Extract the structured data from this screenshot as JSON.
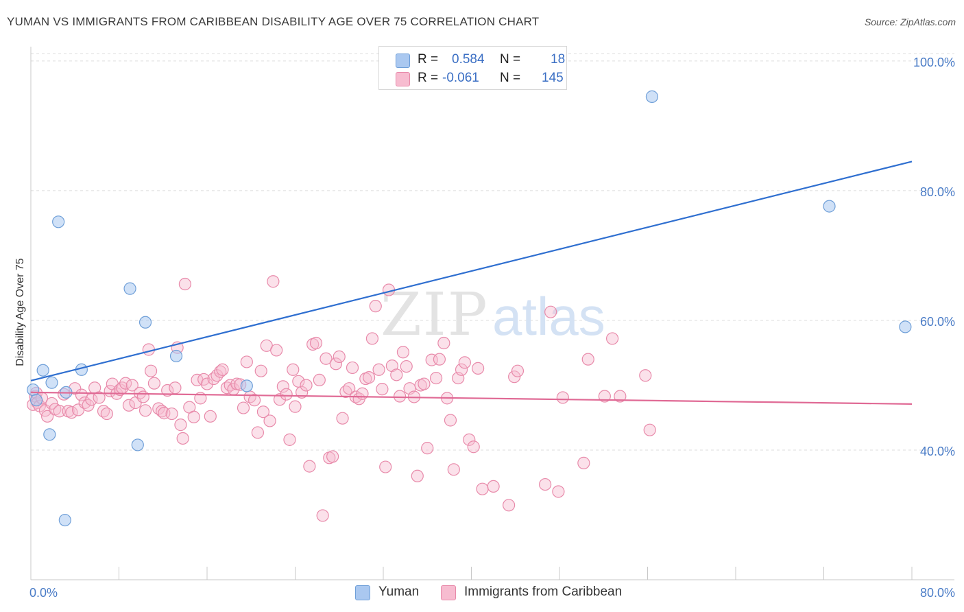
{
  "title": "YUMAN VS IMMIGRANTS FROM CARIBBEAN DISABILITY AGE OVER 75 CORRELATION CHART",
  "source": "Source: ZipAtlas.com",
  "watermark": {
    "zip": "ZIP",
    "atlas": "atlas"
  },
  "legend_box": {
    "rows": [
      {
        "r_label": "R =",
        "r_value": "0.584",
        "n_label": "N =",
        "n_value": "18",
        "color": "#aac8f0",
        "border": "#6f9fd8"
      },
      {
        "r_label": "R =",
        "r_value": "-0.061",
        "n_label": "N =",
        "n_value": "145",
        "color": "#f7bcd0",
        "border": "#e88aaa"
      }
    ]
  },
  "bottom_legend": [
    {
      "label": "Yuman",
      "color": "#aac8f0",
      "border": "#6f9fd8"
    },
    {
      "label": "Immigrants from Caribbean",
      "color": "#f7bcd0",
      "border": "#e88aaa"
    }
  ],
  "chart_data": {
    "type": "scatter",
    "title": "YUMAN VS IMMIGRANTS FROM CARIBBEAN DISABILITY AGE OVER 75 CORRELATION CHART",
    "xlabel": "",
    "ylabel": "Disability Age Over 75",
    "xlim": [
      0,
      80
    ],
    "ylim": [
      20,
      102
    ],
    "x_tick_labels": [
      "0.0%",
      "80.0%"
    ],
    "y_ticks": [
      40,
      60,
      80,
      100
    ],
    "y_tick_labels": [
      "40.0%",
      "60.0%",
      "80.0%",
      "100.0%"
    ],
    "grid": true,
    "legend_placement": "top-center",
    "series": [
      {
        "name": "Yuman",
        "color": "#6f9fd8",
        "fill": "#aac8f0",
        "trend": {
          "x": [
            0,
            80
          ],
          "y": [
            50.7,
            84.5
          ],
          "color": "#2f6fd0"
        },
        "points": [
          [
            0.2,
            49.3
          ],
          [
            0.5,
            47.7
          ],
          [
            1.1,
            52.3
          ],
          [
            1.9,
            50.4
          ],
          [
            1.7,
            42.4
          ],
          [
            2.5,
            75.2
          ],
          [
            3.1,
            29.2
          ],
          [
            3.2,
            48.9
          ],
          [
            4.6,
            52.4
          ],
          [
            9.0,
            64.9
          ],
          [
            10.4,
            59.7
          ],
          [
            13.2,
            54.5
          ],
          [
            9.7,
            40.8
          ],
          [
            19.6,
            49.9
          ],
          [
            38.8,
            100.0
          ],
          [
            56.4,
            94.5
          ],
          [
            72.5,
            77.6
          ],
          [
            79.4,
            59.0
          ]
        ]
      },
      {
        "name": "Immigrants from Caribbean",
        "color": "#e88aaa",
        "fill": "#f7bcd0",
        "trend": {
          "x": [
            0,
            80
          ],
          "y": [
            48.9,
            47.1
          ],
          "color": "#e06a95"
        },
        "points": [
          [
            0.2,
            47.0
          ],
          [
            0.4,
            48.3
          ],
          [
            0.5,
            48.8
          ],
          [
            0.6,
            47.3
          ],
          [
            0.8,
            46.8
          ],
          [
            1.0,
            48.0
          ],
          [
            1.3,
            46.1
          ],
          [
            1.5,
            45.2
          ],
          [
            1.9,
            47.2
          ],
          [
            2.2,
            46.3
          ],
          [
            2.6,
            46.0
          ],
          [
            3.0,
            48.6
          ],
          [
            3.4,
            46.0
          ],
          [
            3.7,
            45.8
          ],
          [
            4.0,
            49.5
          ],
          [
            4.3,
            46.2
          ],
          [
            4.6,
            48.5
          ],
          [
            4.9,
            47.3
          ],
          [
            5.2,
            46.9
          ],
          [
            5.5,
            47.8
          ],
          [
            5.8,
            49.6
          ],
          [
            6.2,
            48.1
          ],
          [
            6.6,
            46.0
          ],
          [
            6.9,
            45.6
          ],
          [
            7.2,
            49.1
          ],
          [
            7.4,
            50.2
          ],
          [
            7.8,
            48.7
          ],
          [
            8.1,
            49.3
          ],
          [
            8.3,
            49.6
          ],
          [
            8.6,
            50.3
          ],
          [
            8.9,
            46.9
          ],
          [
            9.2,
            50.0
          ],
          [
            9.5,
            47.3
          ],
          [
            9.9,
            48.8
          ],
          [
            10.2,
            48.2
          ],
          [
            10.4,
            46.1
          ],
          [
            10.7,
            55.5
          ],
          [
            10.9,
            52.2
          ],
          [
            11.2,
            50.3
          ],
          [
            11.6,
            46.4
          ],
          [
            11.9,
            46.0
          ],
          [
            12.1,
            45.7
          ],
          [
            12.4,
            49.2
          ],
          [
            12.8,
            45.6
          ],
          [
            13.1,
            49.6
          ],
          [
            13.3,
            55.8
          ],
          [
            13.6,
            43.9
          ],
          [
            13.8,
            41.8
          ],
          [
            14.0,
            65.6
          ],
          [
            14.4,
            46.6
          ],
          [
            14.8,
            45.1
          ],
          [
            15.1,
            50.8
          ],
          [
            15.4,
            48.0
          ],
          [
            15.7,
            50.9
          ],
          [
            16.0,
            50.2
          ],
          [
            16.3,
            45.2
          ],
          [
            16.6,
            51.0
          ],
          [
            16.9,
            51.5
          ],
          [
            17.2,
            52.1
          ],
          [
            17.4,
            52.4
          ],
          [
            17.8,
            49.6
          ],
          [
            18.1,
            50.0
          ],
          [
            18.4,
            49.4
          ],
          [
            18.7,
            50.2
          ],
          [
            19.0,
            50.1
          ],
          [
            19.3,
            46.5
          ],
          [
            19.6,
            53.6
          ],
          [
            19.9,
            48.2
          ],
          [
            20.3,
            47.7
          ],
          [
            20.6,
            42.7
          ],
          [
            20.9,
            52.2
          ],
          [
            21.1,
            45.9
          ],
          [
            21.4,
            56.1
          ],
          [
            21.7,
            44.5
          ],
          [
            22.0,
            66.0
          ],
          [
            22.3,
            55.4
          ],
          [
            22.6,
            47.8
          ],
          [
            22.9,
            49.8
          ],
          [
            23.2,
            48.6
          ],
          [
            23.5,
            41.6
          ],
          [
            23.8,
            52.4
          ],
          [
            24.0,
            46.7
          ],
          [
            24.3,
            50.6
          ],
          [
            24.6,
            48.9
          ],
          [
            25.0,
            50.0
          ],
          [
            25.3,
            37.5
          ],
          [
            25.6,
            56.3
          ],
          [
            25.9,
            56.5
          ],
          [
            26.2,
            50.8
          ],
          [
            26.5,
            29.9
          ],
          [
            26.8,
            54.1
          ],
          [
            27.1,
            38.8
          ],
          [
            27.4,
            39.0
          ],
          [
            27.7,
            53.3
          ],
          [
            28.0,
            54.4
          ],
          [
            28.3,
            44.9
          ],
          [
            28.6,
            49.0
          ],
          [
            28.9,
            49.5
          ],
          [
            29.2,
            52.7
          ],
          [
            29.5,
            48.2
          ],
          [
            29.8,
            47.9
          ],
          [
            30.1,
            48.7
          ],
          [
            30.4,
            51.0
          ],
          [
            30.7,
            51.2
          ],
          [
            31.0,
            57.2
          ],
          [
            31.3,
            62.2
          ],
          [
            31.6,
            52.4
          ],
          [
            31.9,
            49.4
          ],
          [
            32.2,
            37.4
          ],
          [
            32.5,
            64.7
          ],
          [
            32.8,
            53.0
          ],
          [
            33.2,
            51.6
          ],
          [
            33.5,
            48.3
          ],
          [
            33.8,
            55.1
          ],
          [
            34.1,
            52.9
          ],
          [
            34.4,
            49.5
          ],
          [
            34.8,
            48.2
          ],
          [
            35.1,
            36.0
          ],
          [
            35.4,
            50.0
          ],
          [
            35.7,
            50.2
          ],
          [
            36.0,
            40.3
          ],
          [
            36.4,
            53.9
          ],
          [
            36.8,
            51.1
          ],
          [
            37.1,
            54.0
          ],
          [
            37.5,
            56.5
          ],
          [
            37.8,
            48.0
          ],
          [
            38.1,
            44.6
          ],
          [
            38.4,
            37.0
          ],
          [
            38.8,
            51.1
          ],
          [
            39.1,
            52.4
          ],
          [
            39.4,
            53.5
          ],
          [
            39.8,
            41.6
          ],
          [
            40.2,
            40.5
          ],
          [
            40.6,
            52.6
          ],
          [
            41.0,
            34.0
          ],
          [
            42.0,
            34.4
          ],
          [
            43.4,
            31.5
          ],
          [
            43.9,
            51.3
          ],
          [
            44.2,
            52.2
          ],
          [
            46.7,
            34.7
          ],
          [
            47.2,
            61.3
          ],
          [
            47.9,
            33.6
          ],
          [
            48.3,
            48.1
          ],
          [
            50.2,
            38.0
          ],
          [
            50.6,
            54.0
          ],
          [
            52.1,
            48.3
          ],
          [
            52.8,
            57.2
          ],
          [
            53.5,
            48.3
          ],
          [
            55.8,
            51.5
          ],
          [
            56.2,
            43.1
          ]
        ]
      }
    ]
  }
}
